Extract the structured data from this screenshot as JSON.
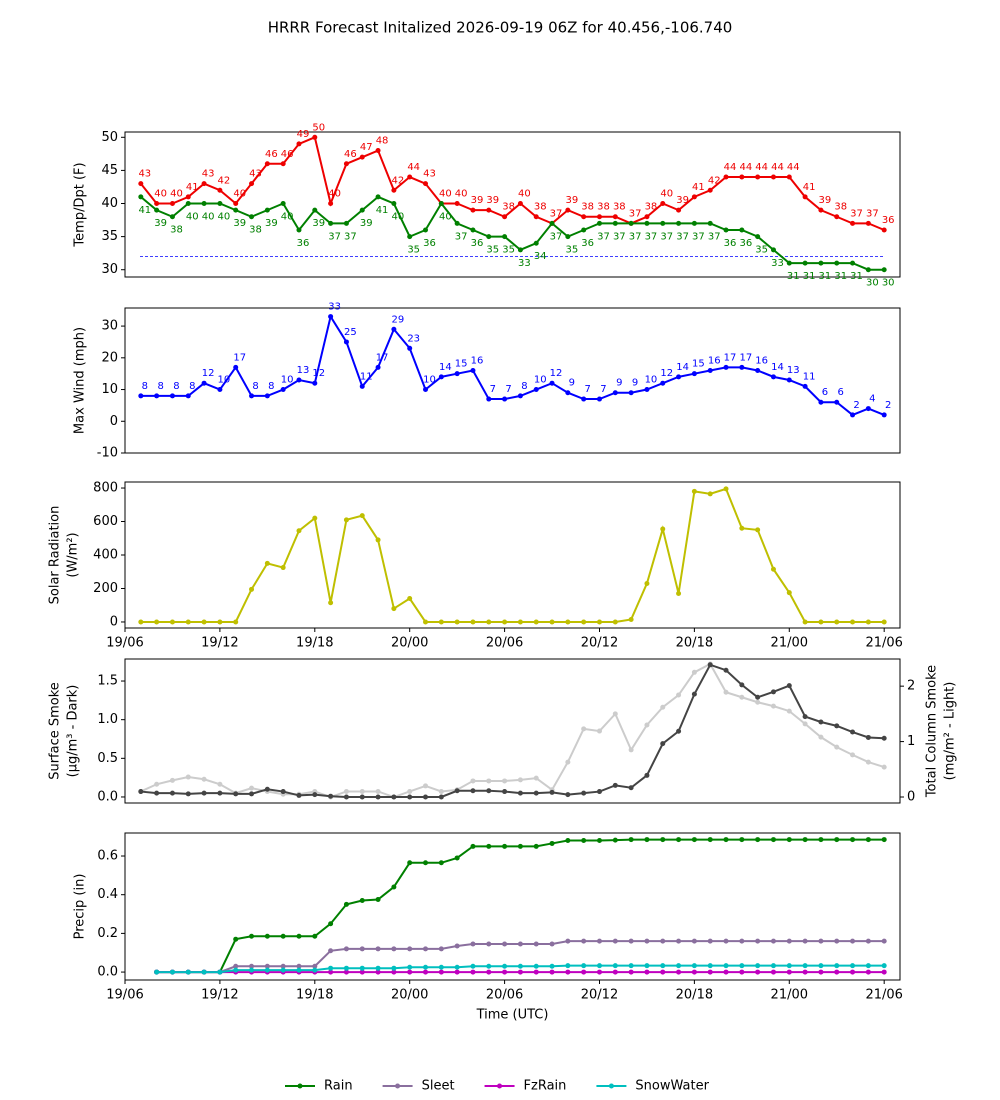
{
  "title": "HRRR Forecast Initalized 2026-09-19 06Z for 40.456,-106.740",
  "chart_data": [
    {
      "type": "line",
      "ylabel": "Temp/Dpt (F)",
      "x": [
        "19/07",
        "19/08",
        "19/09",
        "19/10",
        "19/11",
        "19/12",
        "19/13",
        "19/14",
        "19/15",
        "19/16",
        "19/17",
        "19/18",
        "19/19",
        "19/20",
        "19/21",
        "19/22",
        "19/23",
        "20/00",
        "20/01",
        "20/02",
        "20/03",
        "20/04",
        "20/05",
        "20/06",
        "20/07",
        "20/08",
        "20/09",
        "20/10",
        "20/11",
        "20/12",
        "20/13",
        "20/14",
        "20/15",
        "20/16",
        "20/17",
        "20/18",
        "20/19",
        "20/20",
        "20/21",
        "20/22",
        "20/23",
        "21/00",
        "21/01",
        "21/02",
        "21/03",
        "21/04",
        "21/05",
        "21/06"
      ],
      "xlim": [
        "19/06",
        "21/07"
      ],
      "ylim": [
        28.9,
        50.8
      ],
      "yticks": [
        30,
        35,
        40,
        45,
        50
      ],
      "hline": 32,
      "hline_color": "#0000ff",
      "series": [
        {
          "color": "#ee0000",
          "labels": true,
          "values": [
            43,
            40,
            40,
            41,
            43,
            42,
            40,
            43,
            46,
            46,
            49,
            50,
            40,
            46,
            47,
            48,
            42,
            44,
            43,
            40,
            40,
            39,
            39,
            38,
            40,
            38,
            37,
            39,
            38,
            38,
            38,
            37,
            38,
            40,
            39,
            41,
            42,
            44,
            44,
            44,
            44,
            44,
            41,
            39,
            38,
            37,
            37,
            36
          ]
        },
        {
          "color": "#008000",
          "labels": true,
          "values": [
            41,
            39,
            38,
            40,
            40,
            40,
            39,
            38,
            39,
            40,
            36,
            39,
            37,
            37,
            39,
            41,
            40,
            35,
            36,
            40,
            37,
            36,
            35,
            35,
            33,
            34,
            37,
            35,
            36,
            37,
            37,
            37,
            37,
            37,
            37,
            37,
            37,
            36,
            36,
            35,
            33,
            31,
            31,
            31,
            31,
            31,
            30,
            30
          ]
        }
      ]
    },
    {
      "type": "line",
      "ylabel": "Max Wind (mph)",
      "x": [
        "19/07",
        "19/08",
        "19/09",
        "19/10",
        "19/11",
        "19/12",
        "19/13",
        "19/14",
        "19/15",
        "19/16",
        "19/17",
        "19/18",
        "19/19",
        "19/20",
        "19/21",
        "19/22",
        "19/23",
        "20/00",
        "20/01",
        "20/02",
        "20/03",
        "20/04",
        "20/05",
        "20/06",
        "20/07",
        "20/08",
        "20/09",
        "20/10",
        "20/11",
        "20/12",
        "20/13",
        "20/14",
        "20/15",
        "20/16",
        "20/17",
        "20/18",
        "20/19",
        "20/20",
        "20/21",
        "20/22",
        "20/23",
        "21/00",
        "21/01",
        "21/02",
        "21/03",
        "21/04",
        "21/05",
        "21/06"
      ],
      "xlim": [
        "19/06",
        "21/07"
      ],
      "ylim": [
        -10,
        35.7
      ],
      "yticks": [
        -10,
        0,
        10,
        20,
        30
      ],
      "series": [
        {
          "color": "#0000ff",
          "labels": true,
          "values": [
            8,
            8,
            8,
            8,
            12,
            10,
            17,
            8,
            8,
            10,
            13,
            12,
            33,
            25,
            11,
            17,
            29,
            23,
            10,
            14,
            15,
            16,
            7,
            7,
            8,
            10,
            12,
            9,
            7,
            7,
            9,
            9,
            10,
            12,
            14,
            15,
            16,
            17,
            17,
            16,
            14,
            13,
            11,
            6,
            6,
            2,
            4,
            2
          ]
        }
      ]
    },
    {
      "type": "line",
      "ylabel": [
        "Solar Radiation",
        "(W/m²)"
      ],
      "x": [
        "19/07",
        "19/08",
        "19/09",
        "19/10",
        "19/11",
        "19/12",
        "19/13",
        "19/14",
        "19/15",
        "19/16",
        "19/17",
        "19/18",
        "19/19",
        "19/20",
        "19/21",
        "19/22",
        "19/23",
        "20/00",
        "20/01",
        "20/02",
        "20/03",
        "20/04",
        "20/05",
        "20/06",
        "20/07",
        "20/08",
        "20/09",
        "20/10",
        "20/11",
        "20/12",
        "20/13",
        "20/14",
        "20/15",
        "20/16",
        "20/17",
        "20/18",
        "20/19",
        "20/20",
        "20/21",
        "20/22",
        "20/23",
        "21/00",
        "21/01",
        "21/02",
        "21/03",
        "21/04",
        "21/05",
        "21/06"
      ],
      "xlim": [
        "19/06",
        "21/07"
      ],
      "xticks": [
        "19/06",
        "19/12",
        "19/18",
        "20/00",
        "20/06",
        "20/12",
        "20/18",
        "21/00",
        "21/06"
      ],
      "ylim": [
        -36,
        836
      ],
      "yticks": [
        0,
        200,
        400,
        600,
        800
      ],
      "series": [
        {
          "color": "#bfbf00",
          "values": [
            0,
            0,
            0,
            0,
            0,
            0,
            0,
            195,
            350,
            325,
            545,
            620,
            115,
            610,
            635,
            490,
            80,
            140,
            0,
            0,
            0,
            0,
            0,
            0,
            0,
            0,
            0,
            0,
            0,
            0,
            0,
            15,
            230,
            555,
            170,
            780,
            765,
            795,
            560,
            550,
            315,
            175,
            0,
            0,
            0,
            0,
            0,
            0
          ]
        }
      ]
    },
    {
      "type": "line",
      "ylabel": [
        "Surface Smoke",
        "(μg/m³ - Dark)"
      ],
      "y2label": [
        "Total Column Smoke",
        "(mg/m² - Light)"
      ],
      "x": [
        "19/07",
        "19/08",
        "19/09",
        "19/10",
        "19/11",
        "19/12",
        "19/13",
        "19/14",
        "19/15",
        "19/16",
        "19/17",
        "19/18",
        "19/19",
        "19/20",
        "19/21",
        "19/22",
        "19/23",
        "20/00",
        "20/01",
        "20/02",
        "20/03",
        "20/04",
        "20/05",
        "20/06",
        "20/07",
        "20/08",
        "20/09",
        "20/10",
        "20/11",
        "20/12",
        "20/13",
        "20/14",
        "20/15",
        "20/16",
        "20/17",
        "20/18",
        "20/19",
        "20/20",
        "20/21",
        "20/22",
        "20/23",
        "21/00",
        "21/01",
        "21/02",
        "21/03",
        "21/04",
        "21/05",
        "21/06"
      ],
      "xlim": [
        "19/06",
        "21/07"
      ],
      "ylim": [
        -0.078,
        1.785
      ],
      "yticks": [
        {
          "value": 0,
          "label": "0.0"
        },
        {
          "value": 0.5,
          "label": "0.5"
        },
        {
          "value": 1,
          "label": "1.0"
        },
        {
          "value": 1.5,
          "label": "1.5"
        }
      ],
      "y2lim": [
        -0.108,
        2.49
      ],
      "y2ticks": [
        0,
        1,
        2
      ],
      "series": [
        {
          "color": "#cccccc",
          "axis": "y2",
          "values": [
            0.1,
            0.23,
            0.3,
            0.36,
            0.32,
            0.23,
            0.07,
            0.16,
            0.1,
            0.05,
            0.05,
            0.1,
            0,
            0.1,
            0.1,
            0.1,
            0,
            0.1,
            0.2,
            0.1,
            0.13,
            0.29,
            0.29,
            0.29,
            0.31,
            0.34,
            0.13,
            0.63,
            1.23,
            1.19,
            1.5,
            0.85,
            1.3,
            1.62,
            1.84,
            2.25,
            2.4,
            1.89,
            1.8,
            1.71,
            1.64,
            1.55,
            1.32,
            1.08,
            0.9,
            0.76,
            0.63,
            0.54
          ]
        },
        {
          "color": "#444444",
          "values": [
            0.07,
            0.05,
            0.05,
            0.04,
            0.05,
            0.05,
            0.04,
            0.04,
            0.1,
            0.07,
            0.02,
            0.03,
            0.01,
            0,
            0,
            0,
            0,
            0,
            0,
            0,
            0.08,
            0.08,
            0.08,
            0.07,
            0.05,
            0.05,
            0.06,
            0.03,
            0.05,
            0.07,
            0.15,
            0.12,
            0.28,
            0.69,
            0.85,
            1.33,
            1.71,
            1.64,
            1.45,
            1.29,
            1.36,
            1.44,
            1.04,
            0.97,
            0.92,
            0.84,
            0.77,
            0.76
          ]
        }
      ]
    },
    {
      "type": "line",
      "ylabel": "Precip (in)",
      "xlabel": "Time (UTC)",
      "legend": "bottom",
      "x": [
        "19/07",
        "19/08",
        "19/09",
        "19/10",
        "19/11",
        "19/12",
        "19/13",
        "19/14",
        "19/15",
        "19/16",
        "19/17",
        "19/18",
        "19/19",
        "19/20",
        "19/21",
        "19/22",
        "19/23",
        "20/00",
        "20/01",
        "20/02",
        "20/03",
        "20/04",
        "20/05",
        "20/06",
        "20/07",
        "20/08",
        "20/09",
        "20/10",
        "20/11",
        "20/12",
        "20/13",
        "20/14",
        "20/15",
        "20/16",
        "20/17",
        "20/18",
        "20/19",
        "20/20",
        "20/21",
        "20/22",
        "20/23",
        "21/00",
        "21/01",
        "21/02",
        "21/03",
        "21/04",
        "21/05",
        "21/06"
      ],
      "xlim": [
        "19/06",
        "21/07"
      ],
      "xticks": [
        "19/06",
        "19/12",
        "19/18",
        "20/00",
        "20/06",
        "20/12",
        "20/18",
        "21/00",
        "21/06"
      ],
      "ylim": [
        -0.041,
        0.719
      ],
      "yticks": [
        {
          "value": 0,
          "label": "0.0"
        },
        {
          "value": 0.2,
          "label": "0.2"
        },
        {
          "value": 0.4,
          "label": "0.4"
        },
        {
          "value": 0.6,
          "label": "0.6"
        }
      ],
      "series": [
        {
          "name": "Rain",
          "color": "#008000",
          "values": [
            null,
            0,
            0,
            0,
            0,
            0,
            0.17,
            0.185,
            0.185,
            0.185,
            0.185,
            0.185,
            0.25,
            0.35,
            0.37,
            0.375,
            0.44,
            0.565,
            0.565,
            0.565,
            0.59,
            0.65,
            0.65,
            0.65,
            0.65,
            0.65,
            0.665,
            0.68,
            0.68,
            0.68,
            0.682,
            0.685,
            0.685,
            0.685,
            0.685,
            0.685,
            0.685,
            0.685,
            0.685,
            0.685,
            0.685,
            0.685,
            0.685,
            0.685,
            0.685,
            0.685,
            0.685,
            0.685
          ]
        },
        {
          "name": "Sleet",
          "color": "#8a6f9e",
          "values": [
            null,
            0,
            0,
            0,
            0,
            0,
            0.03,
            0.03,
            0.03,
            0.03,
            0.03,
            0.03,
            0.11,
            0.12,
            0.12,
            0.12,
            0.12,
            0.12,
            0.12,
            0.12,
            0.135,
            0.145,
            0.145,
            0.145,
            0.145,
            0.145,
            0.145,
            0.16,
            0.16,
            0.16,
            0.16,
            0.16,
            0.16,
            0.16,
            0.16,
            0.16,
            0.16,
            0.16,
            0.16,
            0.16,
            0.16,
            0.16,
            0.16,
            0.16,
            0.16,
            0.16,
            0.16,
            0.16
          ]
        },
        {
          "name": "FzRain",
          "color": "#bf00bf",
          "values": [
            null,
            0,
            0,
            0,
            0,
            0,
            0,
            0,
            0,
            0,
            0,
            0,
            0,
            0,
            0,
            0,
            0,
            0,
            0,
            0,
            0,
            0,
            0,
            0,
            0,
            0,
            0,
            0,
            0,
            0,
            0,
            0,
            0,
            0,
            0,
            0,
            0,
            0,
            0,
            0,
            0,
            0,
            0,
            0,
            0,
            0,
            0,
            0
          ]
        },
        {
          "name": "SnowWater",
          "color": "#00bfbf",
          "values": [
            null,
            0,
            0,
            0,
            0,
            0,
            0.01,
            0.01,
            0.01,
            0.01,
            0.01,
            0.01,
            0.02,
            0.02,
            0.02,
            0.02,
            0.02,
            0.025,
            0.025,
            0.025,
            0.025,
            0.03,
            0.03,
            0.03,
            0.03,
            0.03,
            0.03,
            0.033,
            0.033,
            0.033,
            0.033,
            0.033,
            0.033,
            0.033,
            0.033,
            0.033,
            0.033,
            0.033,
            0.033,
            0.033,
            0.033,
            0.033,
            0.033,
            0.033,
            0.033,
            0.033,
            0.033,
            0.033
          ]
        }
      ]
    }
  ]
}
